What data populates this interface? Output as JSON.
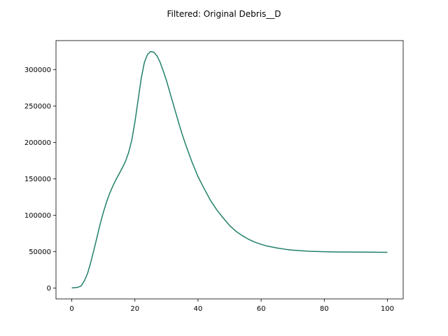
{
  "chart_data": {
    "type": "line",
    "title": "Filtered: Original Debris__D",
    "xlabel": "",
    "ylabel": "",
    "xlim": [
      -5,
      105
    ],
    "ylim": [
      -15000,
      340000
    ],
    "grid": false,
    "x_ticks": [
      0,
      20,
      40,
      60,
      80,
      100
    ],
    "y_ticks": [
      0,
      50000,
      100000,
      150000,
      200000,
      250000,
      300000
    ],
    "series": [
      {
        "color": "#21806a",
        "x": [
          0,
          2,
          3,
          4,
          5,
          6,
          7,
          8,
          9,
          10,
          11,
          12,
          13,
          14,
          15,
          16,
          17,
          18,
          19,
          20,
          21,
          22,
          23,
          24,
          25,
          26,
          27,
          28,
          29,
          30,
          31,
          32,
          33,
          34,
          35,
          36,
          38,
          40,
          42,
          44,
          46,
          48,
          50,
          52,
          54,
          56,
          58,
          60,
          62,
          65,
          68,
          70,
          75,
          80,
          85,
          90,
          95,
          100
        ],
        "y": [
          0,
          1000,
          3000,
          10000,
          20000,
          35000,
          52000,
          70000,
          88000,
          104000,
          118000,
          130000,
          140000,
          149000,
          157000,
          165000,
          174000,
          186000,
          203000,
          228000,
          258000,
          288000,
          310000,
          321000,
          325000,
          324000,
          319000,
          310000,
          298000,
          285000,
          270000,
          255000,
          240000,
          225000,
          211000,
          198000,
          174000,
          153000,
          136000,
          120000,
          107000,
          96000,
          86000,
          78000,
          72000,
          67000,
          63000,
          60000,
          57500,
          55000,
          53000,
          52000,
          50500,
          49800,
          49500,
          49300,
          49200,
          49000
        ]
      }
    ]
  }
}
